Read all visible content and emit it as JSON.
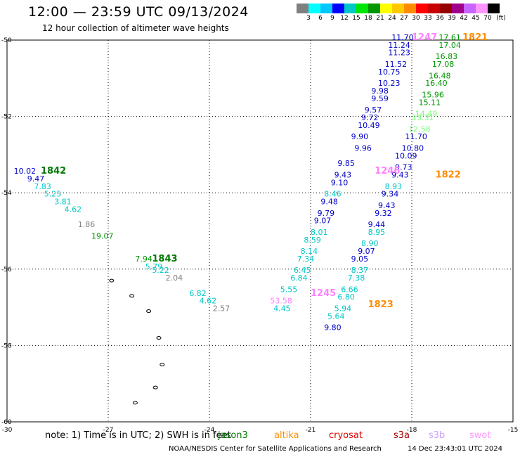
{
  "header": {
    "title": "12:00 — 23:59 UTC 09/13/2024",
    "subtitle": "12 hour collection of altimeter wave heights"
  },
  "colorbar": {
    "colors": [
      "#808080",
      "#00ffff",
      "#00c8ff",
      "#0000ff",
      "#00c8c8",
      "#00e600",
      "#009600",
      "#ffff00",
      "#ffc800",
      "#ff8c00",
      "#ff0000",
      "#c80000",
      "#960000",
      "#a0008c",
      "#c864ff",
      "#ff96ff",
      "#000000"
    ],
    "labels": [
      "3",
      "6",
      "9",
      "12",
      "15",
      "18",
      "21",
      "24",
      "27",
      "30",
      "33",
      "36",
      "39",
      "42",
      "45",
      "70",
      "(ft)"
    ]
  },
  "axes": {
    "x_ticks": [
      "-30",
      "-27",
      "-24",
      "-21",
      "-18",
      "-15"
    ],
    "y_ticks": [
      "-50",
      "-52",
      "-54",
      "-56",
      "-58",
      "-60"
    ]
  },
  "map_data": {
    "extent": {
      "lon": [
        -30,
        -15
      ],
      "lat": [
        -60,
        -50
      ]
    },
    "grid": true,
    "islands": [
      {
        "lon": -26.9,
        "lat": -56.3
      },
      {
        "lon": -26.3,
        "lat": -56.7
      },
      {
        "lon": -25.8,
        "lat": -57.1
      },
      {
        "lon": -25.5,
        "lat": -57.8
      },
      {
        "lon": -25.4,
        "lat": -58.5
      },
      {
        "lon": -25.6,
        "lat": -59.1
      },
      {
        "lon": -26.2,
        "lat": -59.5
      }
    ],
    "pass_labels": [
      {
        "text": "1842",
        "lon": -29.0,
        "lat": -53.5,
        "color": "#007800"
      },
      {
        "text": "1843",
        "lon": -25.7,
        "lat": -55.8,
        "color": "#007800"
      },
      {
        "text": "1246",
        "lon": -19.1,
        "lat": -53.5,
        "color": "#ff82ff"
      },
      {
        "text": "1245",
        "lon": -21.0,
        "lat": -56.7,
        "color": "#ff82ff"
      },
      {
        "text": "1247",
        "lon": -18.0,
        "lat": -50.0,
        "color": "#ff82ff"
      },
      {
        "text": "1821",
        "lon": -16.5,
        "lat": -50.0,
        "color": "#ff8c00"
      },
      {
        "text": "1822",
        "lon": -17.3,
        "lat": -53.6,
        "color": "#ff8c00"
      },
      {
        "text": "1823",
        "lon": -19.3,
        "lat": -57.0,
        "color": "#ff8c00"
      }
    ],
    "observations": [
      {
        "v": "10.02",
        "lon": -29.8,
        "lat": -53.5,
        "color": "#0000c8"
      },
      {
        "v": "9.47",
        "lon": -29.4,
        "lat": -53.7,
        "color": "#0000c8"
      },
      {
        "v": "7.83",
        "lon": -29.2,
        "lat": -53.9,
        "color": "#00c8c8"
      },
      {
        "v": "5.25",
        "lon": -28.9,
        "lat": -54.1,
        "color": "#00c8c8"
      },
      {
        "v": "3.81",
        "lon": -28.6,
        "lat": -54.3,
        "color": "#00c8c8"
      },
      {
        "v": "4.62",
        "lon": -28.3,
        "lat": -54.5,
        "color": "#00c8c8"
      },
      {
        "v": "1.86",
        "lon": -27.9,
        "lat": -54.9,
        "color": "#808080"
      },
      {
        "v": "19.07",
        "lon": -27.5,
        "lat": -55.2,
        "color": "#009600"
      },
      {
        "v": "7.94",
        "lon": -26.2,
        "lat": -55.8,
        "color": "#009600"
      },
      {
        "v": "5.79",
        "lon": -25.9,
        "lat": -56.0,
        "color": "#00c8c8"
      },
      {
        "v": "5.22",
        "lon": -25.7,
        "lat": -56.1,
        "color": "#00c8c8"
      },
      {
        "v": "2.04",
        "lon": -25.3,
        "lat": -56.3,
        "color": "#808080"
      },
      {
        "v": "6.82",
        "lon": -24.6,
        "lat": -56.7,
        "color": "#00c8c8"
      },
      {
        "v": "4.62",
        "lon": -24.3,
        "lat": -56.9,
        "color": "#00c8c8"
      },
      {
        "v": "2.57",
        "lon": -23.9,
        "lat": -57.1,
        "color": "#808080"
      },
      {
        "v": "11.70",
        "lon": -18.6,
        "lat": -50.0,
        "color": "#0000c8"
      },
      {
        "v": "11.24",
        "lon": -18.7,
        "lat": -50.2,
        "color": "#0000c8"
      },
      {
        "v": "11.23",
        "lon": -18.7,
        "lat": -50.4,
        "color": "#0000c8"
      },
      {
        "v": "11.52",
        "lon": -18.8,
        "lat": -50.7,
        "color": "#0000c8"
      },
      {
        "v": "10.75",
        "lon": -19.0,
        "lat": -50.9,
        "color": "#0000c8"
      },
      {
        "v": "10.23",
        "lon": -19.0,
        "lat": -51.2,
        "color": "#0000c8"
      },
      {
        "v": "9.98",
        "lon": -19.2,
        "lat": -51.4,
        "color": "#0000c8"
      },
      {
        "v": "9.59",
        "lon": -19.2,
        "lat": -51.6,
        "color": "#0000c8"
      },
      {
        "v": "9.57",
        "lon": -19.4,
        "lat": -51.9,
        "color": "#0000c8"
      },
      {
        "v": "9.72",
        "lon": -19.5,
        "lat": -52.1,
        "color": "#0000c8"
      },
      {
        "v": "10.49",
        "lon": -19.6,
        "lat": -52.3,
        "color": "#0000c8"
      },
      {
        "v": "9.90",
        "lon": -19.8,
        "lat": -52.6,
        "color": "#0000c8"
      },
      {
        "v": "9.96",
        "lon": -19.7,
        "lat": -52.9,
        "color": "#0000c8"
      },
      {
        "v": "9.85",
        "lon": -20.2,
        "lat": -53.3,
        "color": "#0000c8"
      },
      {
        "v": "9.43",
        "lon": -20.3,
        "lat": -53.6,
        "color": "#0000c8"
      },
      {
        "v": "9.10",
        "lon": -20.4,
        "lat": -53.8,
        "color": "#0000c8"
      },
      {
        "v": "8.46",
        "lon": -20.6,
        "lat": -54.1,
        "color": "#00c8c8"
      },
      {
        "v": "9.48",
        "lon": -20.7,
        "lat": -54.3,
        "color": "#0000c8"
      },
      {
        "v": "9.79",
        "lon": -20.8,
        "lat": -54.6,
        "color": "#0000c8"
      },
      {
        "v": "9.07",
        "lon": -20.9,
        "lat": -54.8,
        "color": "#0000c8"
      },
      {
        "v": "8.01",
        "lon": -21.0,
        "lat": -55.1,
        "color": "#00c8c8"
      },
      {
        "v": "8.59",
        "lon": -21.2,
        "lat": -55.3,
        "color": "#00c8c8"
      },
      {
        "v": "8.14",
        "lon": -21.3,
        "lat": -55.6,
        "color": "#00c8c8"
      },
      {
        "v": "7.34",
        "lon": -21.4,
        "lat": -55.8,
        "color": "#00c8c8"
      },
      {
        "v": "6.45",
        "lon": -21.5,
        "lat": -56.1,
        "color": "#00c8c8"
      },
      {
        "v": "6.84",
        "lon": -21.6,
        "lat": -56.3,
        "color": "#00c8c8"
      },
      {
        "v": "5.55",
        "lon": -21.9,
        "lat": -56.6,
        "color": "#00c8c8"
      },
      {
        "v": "53.58",
        "lon": -22.2,
        "lat": -56.9,
        "color": "#ff82ff"
      },
      {
        "v": "4.45",
        "lon": -22.1,
        "lat": -57.1,
        "color": "#00c8c8"
      },
      {
        "v": "17.61",
        "lon": -17.2,
        "lat": -50.0,
        "color": "#009600"
      },
      {
        "v": "17.04",
        "lon": -17.2,
        "lat": -50.2,
        "color": "#009600"
      },
      {
        "v": "16.83",
        "lon": -17.3,
        "lat": -50.5,
        "color": "#009600"
      },
      {
        "v": "17.08",
        "lon": -17.4,
        "lat": -50.7,
        "color": "#009600"
      },
      {
        "v": "16.48",
        "lon": -17.5,
        "lat": -51.0,
        "color": "#009600"
      },
      {
        "v": "16.40",
        "lon": -17.6,
        "lat": -51.2,
        "color": "#009600"
      },
      {
        "v": "15.96",
        "lon": -17.7,
        "lat": -51.5,
        "color": "#009600"
      },
      {
        "v": "15.11",
        "lon": -17.8,
        "lat": -51.7,
        "color": "#009600"
      },
      {
        "v": "14.49",
        "lon": -17.9,
        "lat": -52.0,
        "color": "#78ff78"
      },
      {
        "v": "13.31",
        "lon": -18.0,
        "lat": -52.1,
        "color": "#78ff78"
      },
      {
        "v": "12.58",
        "lon": -18.1,
        "lat": -52.4,
        "color": "#78ff78"
      },
      {
        "v": "11.70",
        "lon": -18.2,
        "lat": -52.6,
        "color": "#0000c8"
      },
      {
        "v": "10.80",
        "lon": -18.3,
        "lat": -52.9,
        "color": "#0000c8"
      },
      {
        "v": "10.09",
        "lon": -18.5,
        "lat": -53.1,
        "color": "#0000c8"
      },
      {
        "v": "9.73",
        "lon": -18.5,
        "lat": -53.4,
        "color": "#0000c8"
      },
      {
        "v": "9.43",
        "lon": -18.6,
        "lat": -53.6,
        "color": "#0000c8"
      },
      {
        "v": "8.93",
        "lon": -18.8,
        "lat": -53.9,
        "color": "#00c8c8"
      },
      {
        "v": "9.34",
        "lon": -18.9,
        "lat": -54.1,
        "color": "#0000c8"
      },
      {
        "v": "9.43",
        "lon": -19.0,
        "lat": -54.4,
        "color": "#0000c8"
      },
      {
        "v": "9.32",
        "lon": -19.1,
        "lat": -54.6,
        "color": "#0000c8"
      },
      {
        "v": "9.44",
        "lon": -19.3,
        "lat": -54.9,
        "color": "#0000c8"
      },
      {
        "v": "8.95",
        "lon": -19.3,
        "lat": -55.1,
        "color": "#00c8c8"
      },
      {
        "v": "8.90",
        "lon": -19.5,
        "lat": -55.4,
        "color": "#00c8c8"
      },
      {
        "v": "9.07",
        "lon": -19.6,
        "lat": -55.6,
        "color": "#0000c8"
      },
      {
        "v": "9.05",
        "lon": -19.8,
        "lat": -55.8,
        "color": "#0000c8"
      },
      {
        "v": "8.37",
        "lon": -19.8,
        "lat": -56.1,
        "color": "#00c8c8"
      },
      {
        "v": "7.38",
        "lon": -19.9,
        "lat": -56.3,
        "color": "#00c8c8"
      },
      {
        "v": "6.66",
        "lon": -20.1,
        "lat": -56.6,
        "color": "#00c8c8"
      },
      {
        "v": "6.80",
        "lon": -20.2,
        "lat": -56.8,
        "color": "#00c8c8"
      },
      {
        "v": "5.94",
        "lon": -20.3,
        "lat": -57.1,
        "color": "#00c8c8"
      },
      {
        "v": "5.64",
        "lon": -20.5,
        "lat": -57.3,
        "color": "#00c8c8"
      },
      {
        "v": "9.80",
        "lon": -20.6,
        "lat": -57.6,
        "color": "#0000c8"
      }
    ]
  },
  "footer": {
    "note": "note: 1) Time is in UTC; 2) SWH is in feet",
    "satellites": [
      {
        "name": "jason3",
        "color": "#008000"
      },
      {
        "name": "altika",
        "color": "#ff8c00"
      },
      {
        "name": "cryosat",
        "color": "#e00000"
      },
      {
        "name": "s3a",
        "color": "#a00000"
      },
      {
        "name": "s3b",
        "color": "#c8a0ff"
      },
      {
        "name": "swot",
        "color": "#ff96ff"
      }
    ],
    "credit": "NOAA/NESDIS Center for Satellite Applications and Research",
    "date": "14 Dec 23:43:01 UTC 2024"
  }
}
